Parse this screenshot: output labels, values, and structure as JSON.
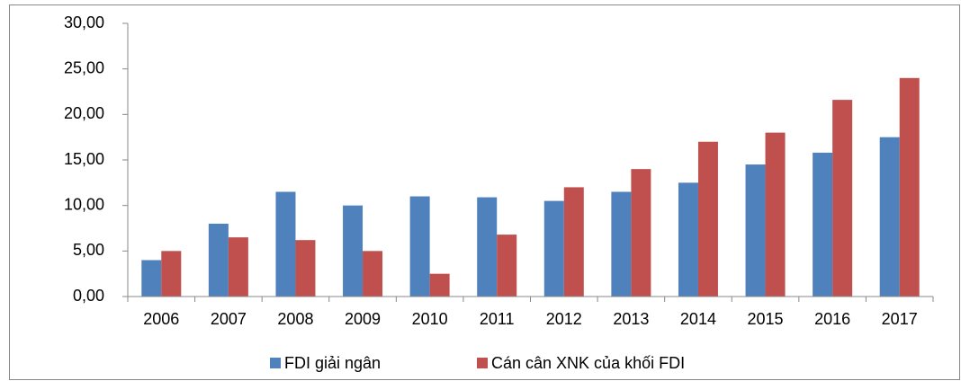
{
  "chart_data": {
    "type": "bar",
    "categories": [
      "2006",
      "2007",
      "2008",
      "2009",
      "2010",
      "2011",
      "2012",
      "2013",
      "2014",
      "2015",
      "2016",
      "2017"
    ],
    "series": [
      {
        "name": "FDI giải ngân",
        "color": "#4f81bd",
        "values": [
          4.0,
          8.0,
          11.5,
          10.0,
          11.0,
          10.9,
          10.5,
          11.5,
          12.5,
          14.5,
          15.8,
          17.5
        ]
      },
      {
        "name": "Cán cân XNK của khối FDI",
        "color": "#c0504d",
        "values": [
          5.0,
          6.5,
          6.2,
          5.0,
          2.5,
          6.8,
          12.0,
          14.0,
          17.0,
          18.0,
          21.6,
          24.0
        ]
      }
    ],
    "ylim": [
      0,
      30
    ],
    "yticks": [
      {
        "value": 0,
        "label": "0,00"
      },
      {
        "value": 5,
        "label": "5,00"
      },
      {
        "value": 10,
        "label": "10,00"
      },
      {
        "value": 15,
        "label": "15,00"
      },
      {
        "value": 20,
        "label": "20,00"
      },
      {
        "value": 25,
        "label": "25,00"
      },
      {
        "value": 30,
        "label": "30,00"
      }
    ],
    "grid": false,
    "legend": "bottom"
  }
}
